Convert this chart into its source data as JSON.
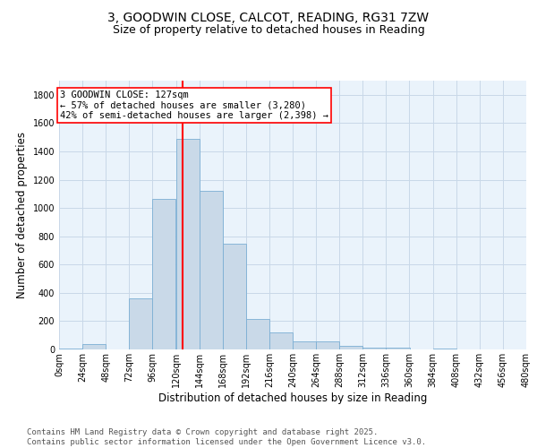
{
  "title_line1": "3, GOODWIN CLOSE, CALCOT, READING, RG31 7ZW",
  "title_line2": "Size of property relative to detached houses in Reading",
  "xlabel": "Distribution of detached houses by size in Reading",
  "ylabel": "Number of detached properties",
  "bar_bins": [
    0,
    24,
    48,
    72,
    96,
    120,
    144,
    168,
    192,
    216,
    240,
    264,
    288,
    312,
    336,
    360,
    384,
    408,
    432,
    456,
    480
  ],
  "bar_values": [
    5,
    35,
    0,
    360,
    1065,
    1490,
    1120,
    750,
    215,
    120,
    55,
    55,
    25,
    15,
    10,
    0,
    5,
    0,
    0,
    0
  ],
  "bar_color": "#c9d9e8",
  "bar_edgecolor": "#7bafd4",
  "vline_x": 127,
  "vline_color": "red",
  "annotation_text": "3 GOODWIN CLOSE: 127sqm\n← 57% of detached houses are smaller (3,280)\n42% of semi-detached houses are larger (2,398) →",
  "annotation_box_color": "white",
  "annotation_box_edgecolor": "red",
  "ylim": [
    0,
    1900
  ],
  "yticks": [
    0,
    200,
    400,
    600,
    800,
    1000,
    1200,
    1400,
    1600,
    1800
  ],
  "grid_color": "#c8d8e8",
  "bg_color": "#eaf3fb",
  "footer_text": "Contains HM Land Registry data © Crown copyright and database right 2025.\nContains public sector information licensed under the Open Government Licence v3.0.",
  "title_fontsize": 10,
  "subtitle_fontsize": 9,
  "axis_label_fontsize": 8.5,
  "tick_fontsize": 7,
  "annotation_fontsize": 7.5,
  "footer_fontsize": 6.5
}
